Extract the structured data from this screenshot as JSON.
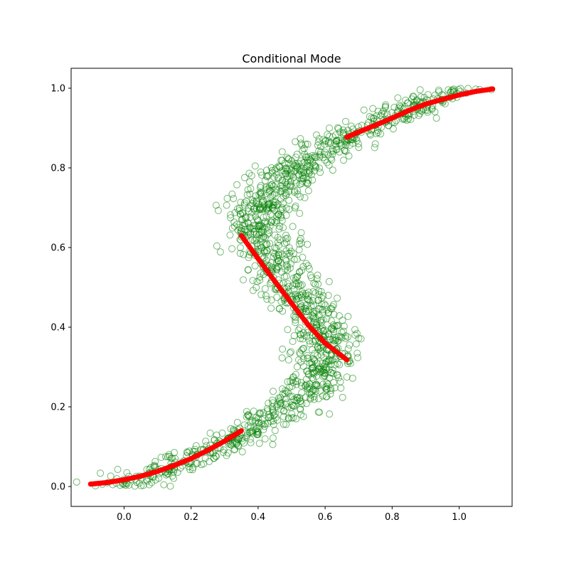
{
  "chart_data": {
    "type": "scatter",
    "title": "Conditional Mode",
    "xlabel": "",
    "ylabel": "",
    "xlim": [
      -0.158,
      1.158
    ],
    "ylim": [
      -0.05,
      1.05
    ],
    "x_ticks": [
      0.0,
      0.2,
      0.4,
      0.6,
      0.8,
      1.0
    ],
    "x_tick_labels": [
      "0.0",
      "0.2",
      "0.4",
      "0.6",
      "0.8",
      "1.0"
    ],
    "y_ticks": [
      0.0,
      0.2,
      0.4,
      0.6,
      0.8,
      1.0
    ],
    "y_tick_labels": [
      "0.0",
      "0.2",
      "0.4",
      "0.6",
      "0.8",
      "1.0"
    ],
    "grid": false,
    "legend": "none",
    "colors": {
      "samples": "#008000",
      "mode": "#ff0000"
    },
    "series": [
      {
        "kind": "samples",
        "marker": "hollow-circle",
        "description_curve": "x = y + 0.3*sin(2*pi*y) + noise, y in [0, 1]",
        "noise_x": 0.05,
        "count": 1500
      },
      {
        "kind": "mode",
        "marker": "filled-dot",
        "branches": [
          {
            "x": [
              -0.1,
              -0.05,
              0.0,
              0.05,
              0.1,
              0.15,
              0.2,
              0.25,
              0.3,
              0.35
            ],
            "y": [
              0.006,
              0.01,
              0.017,
              0.026,
              0.038,
              0.053,
              0.07,
              0.091,
              0.114,
              0.14
            ]
          },
          {
            "x": [
              0.35,
              0.4,
              0.45,
              0.5,
              0.55,
              0.6,
              0.665
            ],
            "y": [
              0.63,
              0.572,
              0.515,
              0.46,
              0.405,
              0.36,
              0.318
            ]
          },
          {
            "x": [
              0.665,
              0.7,
              0.75,
              0.8,
              0.85,
              0.9,
              0.95,
              1.0,
              1.05,
              1.1
            ],
            "y": [
              0.877,
              0.89,
              0.907,
              0.925,
              0.944,
              0.96,
              0.972,
              0.983,
              0.992,
              0.998
            ]
          }
        ]
      }
    ]
  }
}
